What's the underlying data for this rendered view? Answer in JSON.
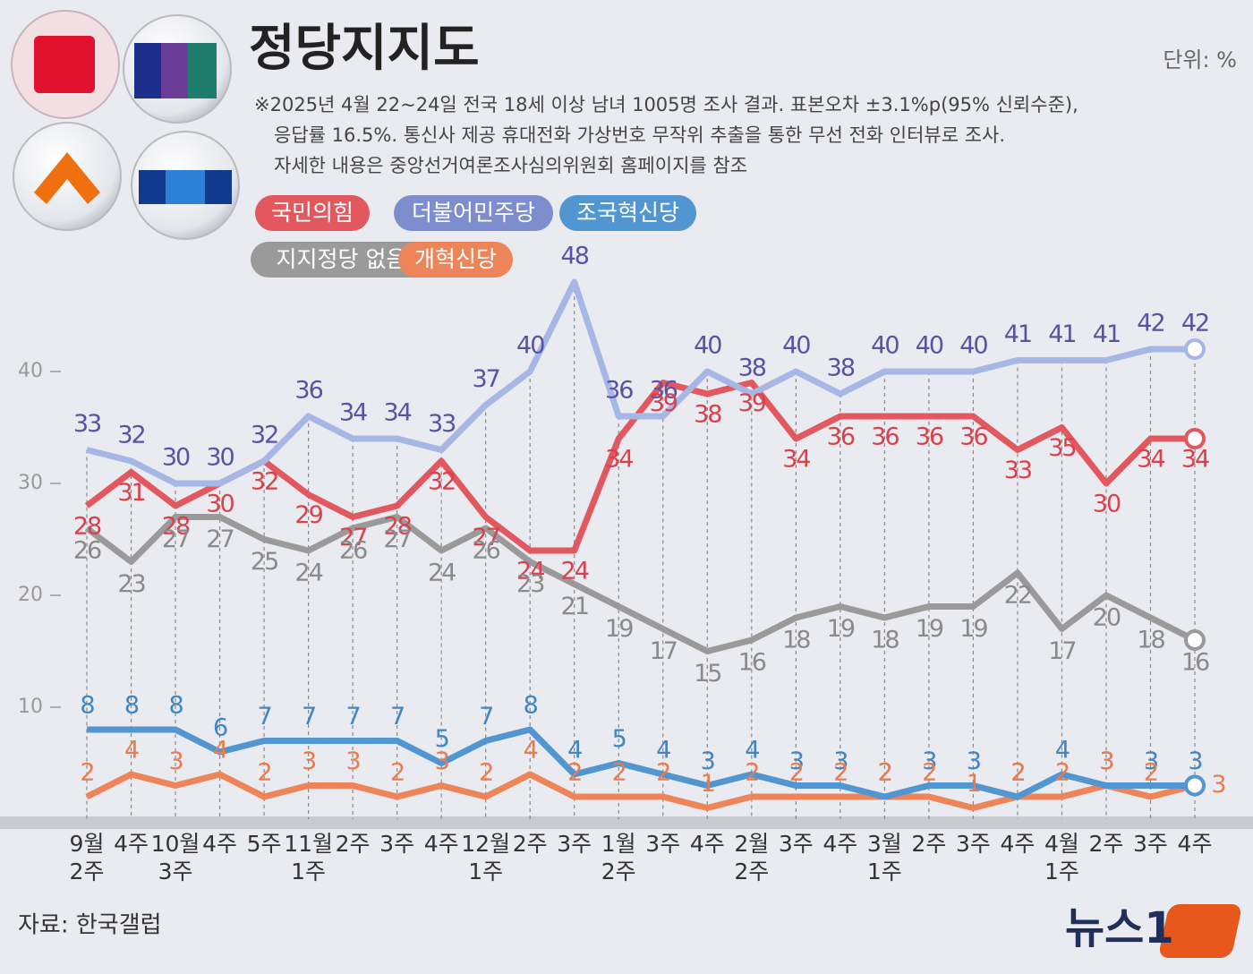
{
  "chart_data": {
    "type": "line",
    "title": "정당지지도",
    "unit_label": "단위: %",
    "notes": [
      "※2025년 4월 22~24일 전국 18세 이상 남녀 1005명 조사 결과. 표본오차 ±3.1%p(95% 신뢰수준),",
      "응답률 16.5%. 통신사 제공 휴대전화 가상번호 무작위 추출을 통한 무선 전화 인터뷰로 조사.",
      "자세한 내용은 중앙선거여론조사심의위원회 홈페이지를 참조"
    ],
    "source": "자료: 한국갤럽",
    "logo": "뉴스1",
    "categories": [
      [
        "9월",
        "2주"
      ],
      [
        "4주"
      ],
      [
        "10월",
        "3주"
      ],
      [
        "4주"
      ],
      [
        "5주"
      ],
      [
        "11월",
        "1주"
      ],
      [
        "2주"
      ],
      [
        "3주"
      ],
      [
        "4주"
      ],
      [
        "12월",
        "1주"
      ],
      [
        "2주"
      ],
      [
        "3주"
      ],
      [
        "1월",
        "2주"
      ],
      [
        "3주"
      ],
      [
        "4주"
      ],
      [
        "2월",
        "2주"
      ],
      [
        "3주"
      ],
      [
        "4주"
      ],
      [
        "3월",
        "1주"
      ],
      [
        "2주"
      ],
      [
        "3주"
      ],
      [
        "4주"
      ],
      [
        "4월",
        "1주"
      ],
      [
        "2주"
      ],
      [
        "3주"
      ],
      [
        "4주"
      ]
    ],
    "ylim": [
      0,
      50
    ],
    "yticks": [
      10,
      20,
      30,
      40
    ],
    "series": [
      {
        "name": "더불어민주당",
        "color": "#a6b7e6",
        "label_color": "#5a52a3",
        "legend_color": "#7d8dcd",
        "values": [
          33,
          32,
          30,
          30,
          32,
          36,
          34,
          34,
          33,
          37,
          40,
          48,
          36,
          36,
          40,
          38,
          40,
          38,
          40,
          40,
          40,
          41,
          41,
          41,
          42,
          42
        ]
      },
      {
        "name": "국민의힘",
        "color": "#e2585f",
        "label_color": "#d9414b",
        "legend_color": "#e2585f",
        "values": [
          28,
          31,
          28,
          30,
          32,
          29,
          27,
          28,
          32,
          27,
          24,
          24,
          34,
          39,
          38,
          39,
          34,
          36,
          36,
          36,
          36,
          33,
          35,
          30,
          34,
          34
        ]
      },
      {
        "name": "지지정당 없음",
        "color": "#9a9a9a",
        "label_color": "#8a8a8a",
        "legend_color": "#9a9a9a",
        "values": [
          26,
          23,
          27,
          27,
          25,
          24,
          26,
          27,
          24,
          26,
          23,
          21,
          19,
          17,
          15,
          16,
          18,
          19,
          18,
          19,
          19,
          22,
          17,
          20,
          18,
          16
        ]
      },
      {
        "name": "조국혁신당",
        "color": "#5296d1",
        "label_color": "#3f86c6",
        "legend_color": "#5296d1",
        "values": [
          8,
          8,
          8,
          6,
          7,
          7,
          7,
          7,
          5,
          7,
          8,
          4,
          5,
          4,
          3,
          4,
          3,
          3,
          2,
          3,
          3,
          2,
          4,
          3,
          3,
          3
        ]
      },
      {
        "name": "개혁신당",
        "color": "#ee8559",
        "label_color": "#ea7b4c",
        "legend_color": "#ee8559",
        "values": [
          2,
          4,
          3,
          4,
          2,
          3,
          3,
          2,
          3,
          2,
          4,
          2,
          2,
          2,
          1,
          2,
          2,
          2,
          2,
          2,
          1,
          2,
          2,
          3,
          2,
          3
        ]
      }
    ]
  }
}
